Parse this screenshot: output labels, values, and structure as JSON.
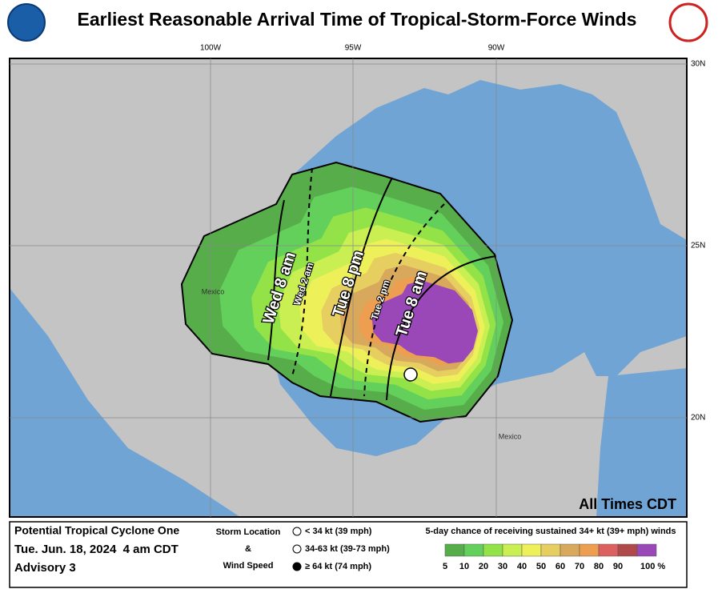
{
  "header": {
    "title": "Earliest Reasonable Arrival Time of Tropical-Storm-Force Winds"
  },
  "map": {
    "lon_labels": [
      "100W",
      "95W",
      "90W"
    ],
    "lat_labels": [
      "30N",
      "25N",
      "20N"
    ],
    "place_labels": [
      "Mexico",
      "Mexico"
    ],
    "contour_labels": [
      "Wed 8 am",
      "Wed 2 am",
      "Tue 8 pm",
      "Tue 2 pm",
      "Tue 8 am"
    ],
    "note": "All Times CDT"
  },
  "footer": {
    "storm": "Potential Tropical Cyclone One",
    "date": "Tue. Jun. 18, 2024  4 am CDT",
    "advisory": "Advisory 3",
    "key_title": [
      "Storm Location",
      "&",
      "Wind Speed"
    ],
    "key_items": [
      "< 34 kt (39 mph)",
      "34-63 kt (39-73 mph)",
      "≥ 64 kt (74 mph)"
    ],
    "legend_title": "5-day chance of receiving sustained 34+ kt (39+ mph) winds",
    "legend_labels": [
      5,
      10,
      20,
      30,
      40,
      50,
      60,
      70,
      80,
      90,
      "100 %"
    ]
  }
}
